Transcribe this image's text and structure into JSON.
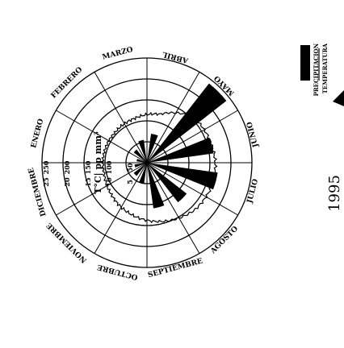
{
  "chart_data": {
    "type": "polar-bar",
    "orientation_note": "rotated",
    "months": [
      "ENERO",
      "FEBRERO",
      "MARZO",
      "ABRIL",
      "MAYO",
      "JUNIO",
      "JULIO",
      "AGOSTO",
      "SEPTIEMBRE",
      "OCTUBRE",
      "NOVIEMBRE",
      "DICIEMBRE"
    ],
    "radial_ticks": {
      "temperature": [
        "5",
        "10",
        "15",
        "20",
        "25"
      ],
      "precipitation": [
        "50",
        "100",
        "150",
        "200",
        "250"
      ]
    },
    "unit_label": "T°C| pp mm³",
    "series": [
      {
        "name": "PRECIPITACION",
        "kind": "bars",
        "values": [
          25,
          40,
          55,
          70,
          240,
          160,
          170,
          120,
          110,
          50,
          40,
          30
        ]
      },
      {
        "name": "TEMPERATURA",
        "kind": "line",
        "values": [
          10.5,
          10.5,
          11,
          12,
          15.5,
          16,
          16.5,
          16,
          14.5,
          13,
          11.5,
          10.5
        ]
      }
    ],
    "rmax_precip": 250,
    "rmax_temp": 25,
    "year_label": "1995",
    "colors": {
      "bars": "#000000",
      "line": "#000000",
      "grid": "#000000"
    }
  }
}
